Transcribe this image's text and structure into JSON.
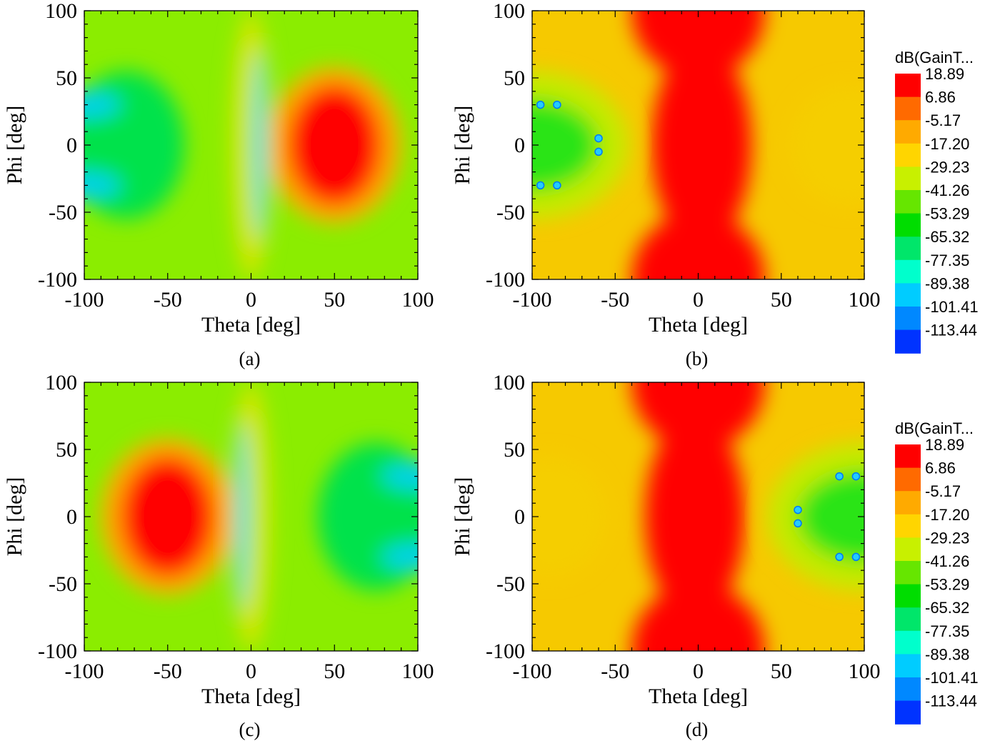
{
  "chart_data": [
    {
      "type": "heatmap",
      "panel_label": "(a)",
      "xlabel": "Theta [deg]",
      "ylabel": "Phi [deg]",
      "xlim": [
        -100,
        100
      ],
      "ylim": [
        -100,
        100
      ],
      "xticks": [
        "-100",
        "-50",
        "0",
        "50",
        "100"
      ],
      "yticks": [
        "100",
        "50",
        "0",
        "-50",
        "-100"
      ],
      "zlim": [
        -113.44,
        18.89
      ],
      "background_db": -33,
      "regions": [
        {
          "theta": 50,
          "phi": 0,
          "rtheta": 28,
          "rphi": 45,
          "value_db": 18.89
        },
        {
          "theta": 50,
          "phi": 0,
          "rtheta": 40,
          "rphi": 58,
          "value_db": -5.17
        },
        {
          "theta": 5,
          "phi": 0,
          "rtheta": 4,
          "rphi": 70,
          "value_db": -80
        },
        {
          "theta": -100,
          "phi": 30,
          "rtheta": 22,
          "rphi": 10,
          "value_db": -83
        },
        {
          "theta": -100,
          "phi": -30,
          "rtheta": 22,
          "rphi": 10,
          "value_db": -83
        },
        {
          "theta": -75,
          "phi": 0,
          "rtheta": 35,
          "rphi": 55,
          "value_db": -56
        },
        {
          "theta": 0,
          "phi": 0,
          "rtheta": 12,
          "rphi": 100,
          "value_db": -22
        }
      ]
    },
    {
      "type": "heatmap",
      "panel_label": "(b)",
      "xlabel": "Theta [deg]",
      "ylabel": "Phi [deg]",
      "xlim": [
        -100,
        100
      ],
      "ylim": [
        -100,
        100
      ],
      "xticks": [
        "-100",
        "-50",
        "0",
        "50",
        "100"
      ],
      "yticks": [
        "100",
        "50",
        "0",
        "-50",
        "-100"
      ],
      "zlim": [
        -113.44,
        18.89
      ],
      "background_db": -12,
      "regions": [
        {
          "theta": 0,
          "phi": 100,
          "rtheta": 40,
          "rphi": 50,
          "value_db": 18.89
        },
        {
          "theta": 0,
          "phi": -100,
          "rtheta": 40,
          "rphi": 50,
          "value_db": 18.89
        },
        {
          "theta": 2,
          "phi": 0,
          "rtheta": 30,
          "rphi": 75,
          "value_db": 18.89
        },
        {
          "theta": -100,
          "phi": 0,
          "rtheta": 40,
          "rphi": 34,
          "value_db": -46
        },
        {
          "theta": -100,
          "phi": 0,
          "rtheta": 58,
          "rphi": 55,
          "value_db": -25
        },
        {
          "theta": 90,
          "phi": 0,
          "rtheta": 35,
          "rphi": 45,
          "value_db": -13
        }
      ],
      "markers": [
        [
          -95,
          30
        ],
        [
          -85,
          30
        ],
        [
          -95,
          -30
        ],
        [
          -85,
          -30
        ],
        [
          -60,
          5
        ],
        [
          -60,
          -5
        ]
      ],
      "colorbar": {
        "title": "dB(GainT...",
        "levels": [
          "18.89",
          "6.86",
          "-5.17",
          "-17.20",
          "-29.23",
          "-41.26",
          "-53.29",
          "-65.32",
          "-77.35",
          "-89.38",
          "-101.41",
          "-113.44"
        ],
        "colors": [
          "#ff0000",
          "#ff6a00",
          "#ffaa00",
          "#ffd500",
          "#c8f000",
          "#66e600",
          "#00dd00",
          "#00e66a",
          "#00ffcc",
          "#00ccff",
          "#0088ff",
          "#0033ff"
        ]
      }
    },
    {
      "type": "heatmap",
      "panel_label": "(c)",
      "xlabel": "Theta [deg]",
      "ylabel": "Phi [deg]",
      "xlim": [
        -100,
        100
      ],
      "ylim": [
        -100,
        100
      ],
      "xticks": [
        "-100",
        "-50",
        "0",
        "50",
        "100"
      ],
      "yticks": [
        "100",
        "50",
        "0",
        "-50",
        "-100"
      ],
      "zlim": [
        -113.44,
        18.89
      ],
      "background_db": -33,
      "regions": [
        {
          "theta": -50,
          "phi": 0,
          "rtheta": 28,
          "rphi": 45,
          "value_db": 18.89
        },
        {
          "theta": -50,
          "phi": 0,
          "rtheta": 40,
          "rphi": 58,
          "value_db": -5.17
        },
        {
          "theta": -5,
          "phi": 0,
          "rtheta": 4,
          "rphi": 70,
          "value_db": -80
        },
        {
          "theta": 100,
          "phi": 30,
          "rtheta": 22,
          "rphi": 10,
          "value_db": -83
        },
        {
          "theta": 100,
          "phi": -30,
          "rtheta": 22,
          "rphi": 10,
          "value_db": -83
        },
        {
          "theta": 75,
          "phi": 0,
          "rtheta": 35,
          "rphi": 55,
          "value_db": -56
        },
        {
          "theta": 0,
          "phi": 0,
          "rtheta": 12,
          "rphi": 100,
          "value_db": -22
        }
      ]
    },
    {
      "type": "heatmap",
      "panel_label": "(d)",
      "xlabel": "Theta [deg]",
      "ylabel": "Phi [deg]",
      "xlim": [
        -100,
        100
      ],
      "ylim": [
        -100,
        100
      ],
      "xticks": [
        "-100",
        "-50",
        "0",
        "50",
        "100"
      ],
      "yticks": [
        "100",
        "50",
        "0",
        "-50",
        "-100"
      ],
      "zlim": [
        -113.44,
        18.89
      ],
      "background_db": -12,
      "regions": [
        {
          "theta": 0,
          "phi": 100,
          "rtheta": 40,
          "rphi": 50,
          "value_db": 18.89
        },
        {
          "theta": 0,
          "phi": -100,
          "rtheta": 40,
          "rphi": 50,
          "value_db": 18.89
        },
        {
          "theta": -2,
          "phi": 0,
          "rtheta": 30,
          "rphi": 75,
          "value_db": 18.89
        },
        {
          "theta": 100,
          "phi": 0,
          "rtheta": 40,
          "rphi": 34,
          "value_db": -46
        },
        {
          "theta": 100,
          "phi": 0,
          "rtheta": 58,
          "rphi": 55,
          "value_db": -25
        },
        {
          "theta": -90,
          "phi": 0,
          "rtheta": 35,
          "rphi": 45,
          "value_db": -13
        }
      ],
      "markers": [
        [
          95,
          30
        ],
        [
          85,
          30
        ],
        [
          95,
          -30
        ],
        [
          85,
          -30
        ],
        [
          60,
          5
        ],
        [
          60,
          -5
        ]
      ],
      "colorbar": {
        "title": "dB(GainT...",
        "levels": [
          "18.89",
          "6.86",
          "-5.17",
          "-17.20",
          "-29.23",
          "-41.26",
          "-53.29",
          "-65.32",
          "-77.35",
          "-89.38",
          "-101.41",
          "-113.44"
        ],
        "colors": [
          "#ff0000",
          "#ff6a00",
          "#ffaa00",
          "#ffd500",
          "#c8f000",
          "#66e600",
          "#00dd00",
          "#00e66a",
          "#00ffcc",
          "#00ccff",
          "#0088ff",
          "#0033ff"
        ]
      }
    }
  ]
}
